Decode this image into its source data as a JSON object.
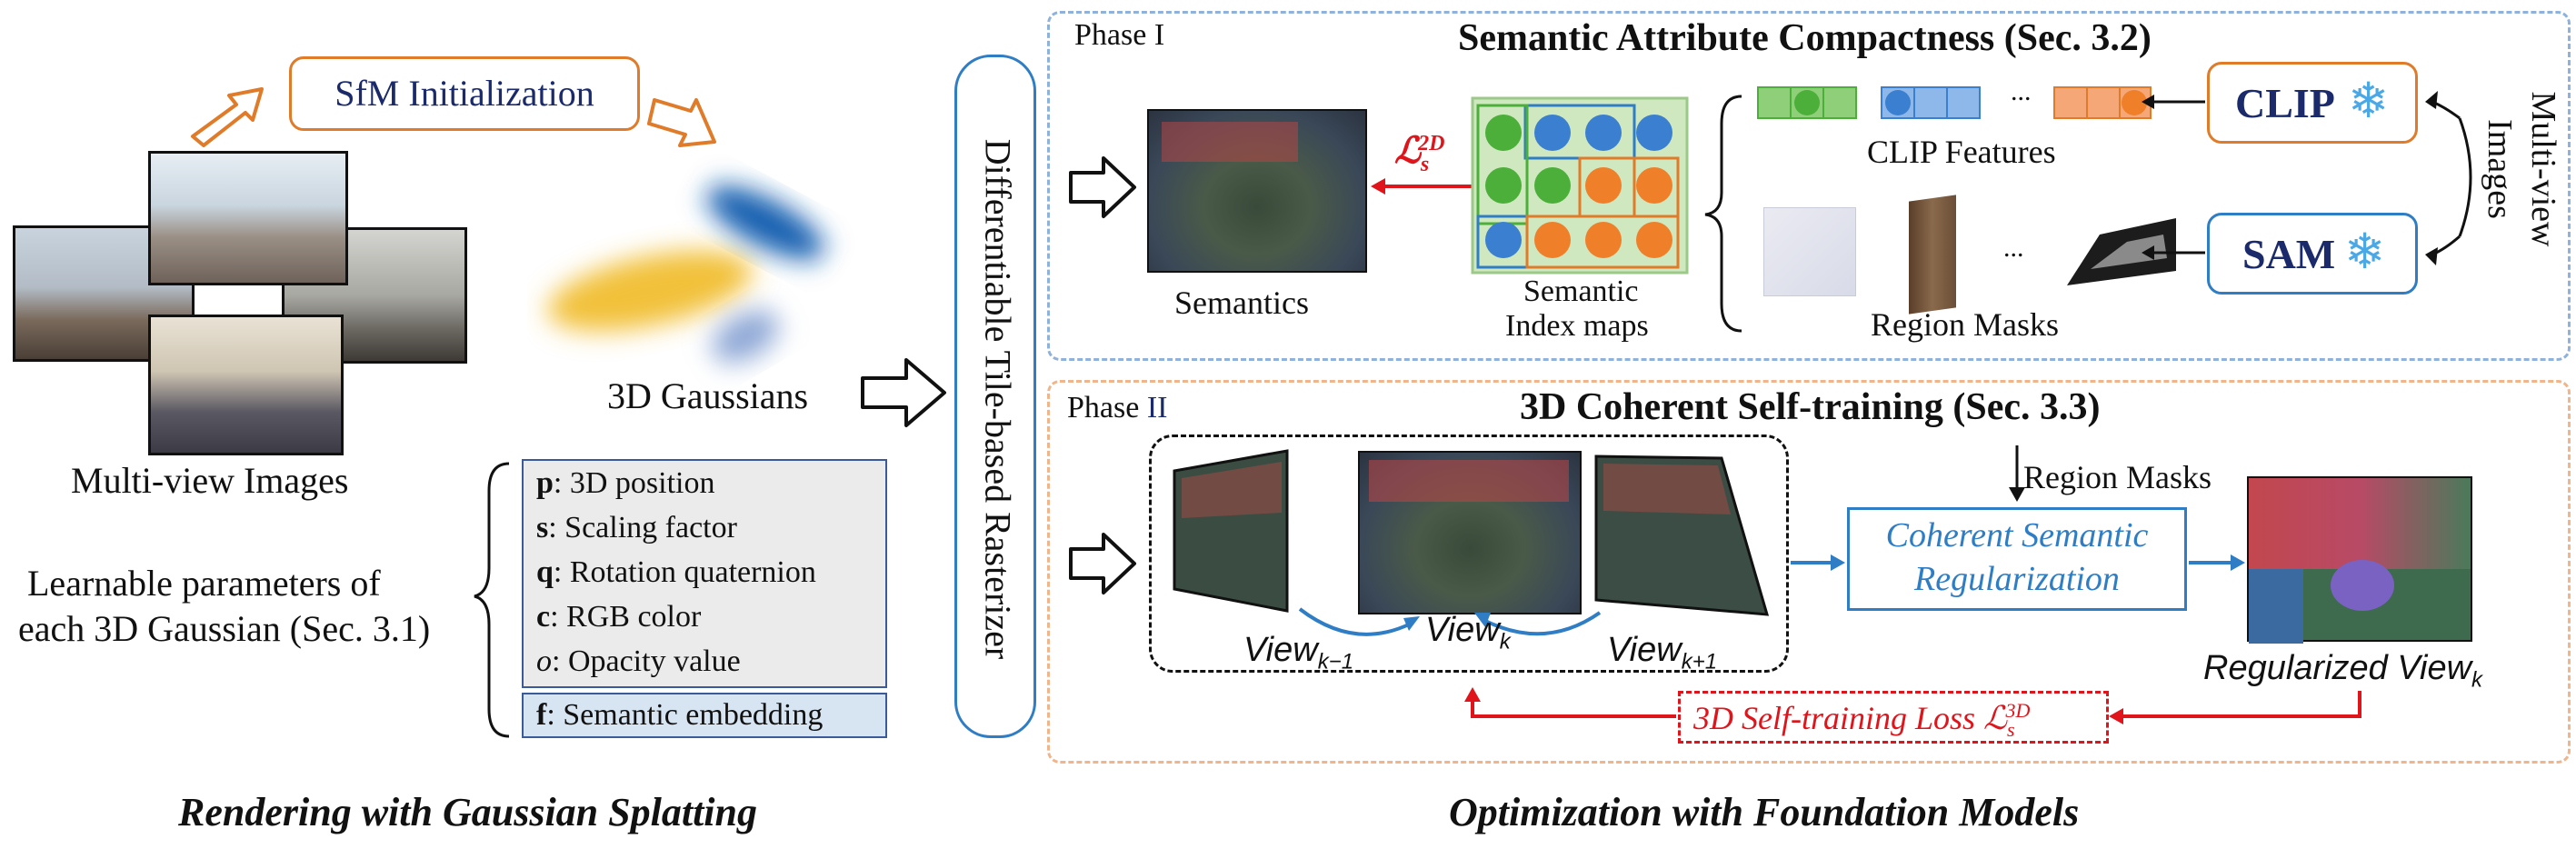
{
  "left": {
    "sfm_label": "SfM Initialization",
    "multiview_caption": "Multi-view Images",
    "gaussians_caption": "3D Gaussians",
    "learnable_caption_line1": "Learnable parameters of",
    "learnable_caption_line2": "each 3D Gaussian (Sec. 3.1)",
    "params": [
      {
        "sym": "p",
        "text": ": 3D position"
      },
      {
        "sym": "s",
        "text": ": Scaling factor"
      },
      {
        "sym": "q",
        "text": ": Rotation quaternion"
      },
      {
        "sym": "c",
        "text": ": RGB color"
      },
      {
        "sym": "o",
        "text": ": Opacity value"
      }
    ],
    "semantic_param": {
      "sym": "f",
      "text": ": Semantic embedding"
    },
    "section_title": "Rendering with Gaussian Splatting"
  },
  "rasterizer": {
    "label": "Differentiable Tile-based Rasterizer"
  },
  "phase1": {
    "phase_label": "Phase I",
    "title": "Semantic Attribute Compactness (Sec. 3.2)",
    "semantics_caption": "Semantics",
    "index_maps_caption_line1": "Semantic",
    "index_maps_caption_line2": "Index maps",
    "clip_features_caption": "CLIP Features",
    "region_masks_caption": "Region Masks",
    "loss_label": "ℒ",
    "loss_sub": "s",
    "loss_sup": "2D",
    "clip_label": "CLIP",
    "sam_label": "SAM",
    "ellipsis": "...",
    "multiview_side_line1": "Multi-view",
    "multiview_side_line2": "Images"
  },
  "phase2": {
    "phase_label": "Phase ",
    "phase_numeral": "II",
    "title": "3D Coherent Self-training (Sec. 3.3)",
    "region_masks_label": "Region Masks",
    "regularization_line1": "Coherent Semantic",
    "regularization_line2": "Regularization",
    "view_prev": "View",
    "view_prev_sub": "k−1",
    "view_k": "View",
    "view_k_sub": "k",
    "view_next": "View",
    "view_next_sub": "k+1",
    "regularized_label": "Regularized View",
    "regularized_sub": "k",
    "self_loss_label": "3D Self-training Loss ℒ",
    "self_loss_sub": "s",
    "self_loss_sup": "3D"
  },
  "right_section_title": "Optimization with Foundation Models",
  "colors": {
    "orange": "#e07b2a",
    "blue": "#2f7dc4",
    "red": "#e0151b",
    "navy": "#1a2a6b",
    "param_box": "#ebebeb",
    "semantic_box": "#d7e5f3",
    "index_bg": "#cfe8c0",
    "green_dot": "#4caf3a",
    "blue_dot": "#3a7fd0",
    "orange_dot": "#f07f2a"
  }
}
